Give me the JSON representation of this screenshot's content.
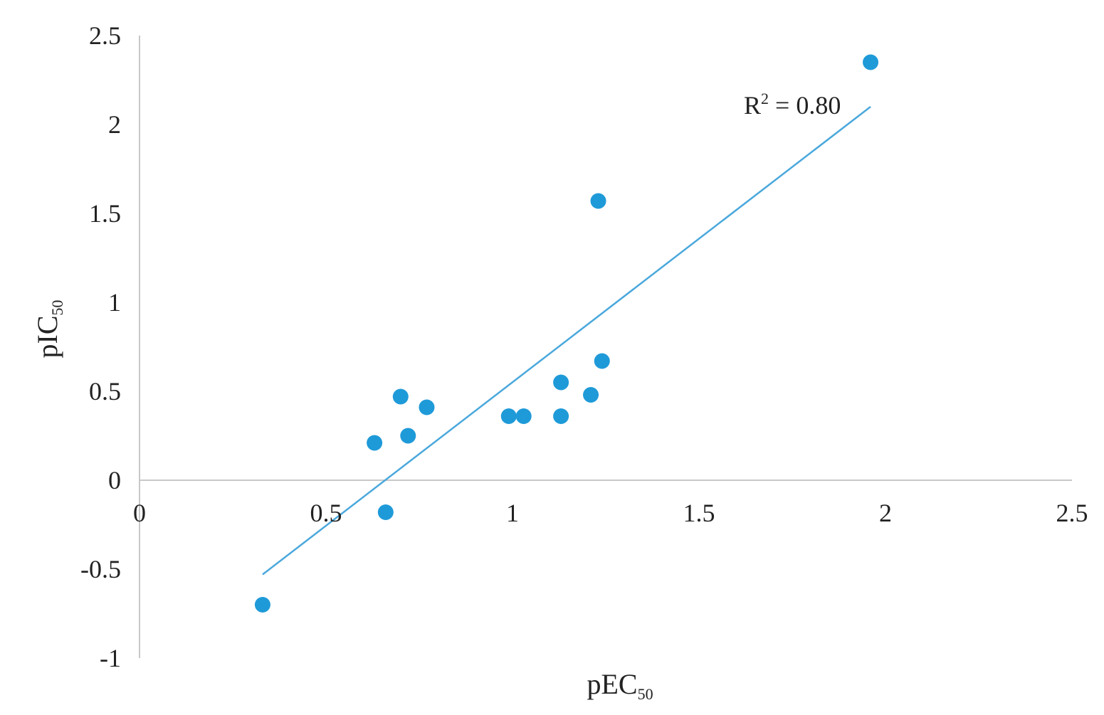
{
  "chart_data": {
    "type": "scatter",
    "title": "",
    "xlabel": {
      "main": "pEC",
      "sub": "50"
    },
    "ylabel": {
      "main": "pIC",
      "sub": "50"
    },
    "xlim": [
      0,
      2.5
    ],
    "ylim": [
      -1,
      2.5
    ],
    "x_ticks": [
      "0",
      "0.5",
      "1",
      "1.5",
      "2",
      "2.5"
    ],
    "y_ticks": [
      "2.5",
      "2",
      "1.5",
      "1",
      "0.5",
      "0",
      "-0.5",
      "-1"
    ],
    "grid": false,
    "series": [
      {
        "color": "#1f9ad8",
        "points": [
          {
            "x": 0.33,
            "y": -0.7
          },
          {
            "x": 0.63,
            "y": 0.21
          },
          {
            "x": 0.66,
            "y": -0.18
          },
          {
            "x": 0.7,
            "y": 0.47
          },
          {
            "x": 0.72,
            "y": 0.25
          },
          {
            "x": 0.77,
            "y": 0.41
          },
          {
            "x": 0.99,
            "y": 0.36
          },
          {
            "x": 1.03,
            "y": 0.36
          },
          {
            "x": 1.13,
            "y": 0.55
          },
          {
            "x": 1.13,
            "y": 0.36
          },
          {
            "x": 1.21,
            "y": 0.48
          },
          {
            "x": 1.23,
            "y": 1.57
          },
          {
            "x": 1.24,
            "y": 0.67
          },
          {
            "x": 1.96,
            "y": 2.35
          }
        ]
      }
    ],
    "trendline": {
      "type": "linear",
      "color": "#4aa8dc",
      "x_start": 0.33,
      "x_end": 1.96,
      "y_start": -0.53,
      "y_end": 2.1
    },
    "annotation": {
      "main": "R",
      "sup": "2",
      "rest": " = 0.80"
    }
  }
}
